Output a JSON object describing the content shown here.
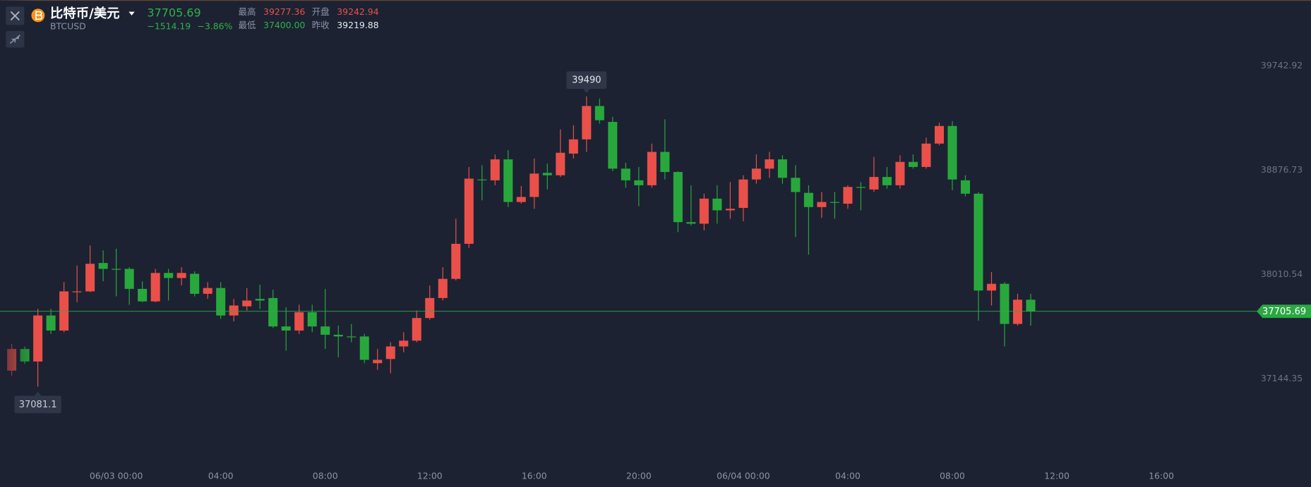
{
  "header": {
    "title": "比特币/美元",
    "symbol": "BTCUSD",
    "price": "37705.69",
    "change": "−1514.19",
    "change_pct": "−3.86%",
    "stats": [
      {
        "label": "最高",
        "value": "39277.36"
      },
      {
        "label": "开盘",
        "value": "39242.94"
      },
      {
        "label": "最低",
        "value": "37400.00"
      },
      {
        "label": "昨收",
        "value": "39219.88"
      }
    ]
  },
  "chart_data": {
    "type": "candlestick",
    "categories": [
      null,
      null,
      null,
      null,
      null,
      null,
      null,
      null,
      "06/03 00:00",
      null,
      null,
      null,
      null,
      null,
      null,
      null,
      "04:00",
      null,
      null,
      null,
      null,
      null,
      null,
      null,
      "08:00",
      null,
      null,
      null,
      null,
      null,
      null,
      null,
      "12:00",
      null,
      null,
      null,
      null,
      null,
      null,
      null,
      "16:00",
      null,
      null,
      null,
      null,
      null,
      null,
      null,
      "20:00",
      null,
      null,
      null,
      null,
      null,
      null,
      null,
      "06/04 00:00",
      null,
      null,
      null,
      null,
      null,
      null,
      null,
      "04:00",
      null,
      null,
      null,
      null,
      null,
      null,
      null,
      "08:00",
      null,
      null,
      null,
      null,
      null,
      null,
      null,
      "12:00",
      null,
      null,
      null,
      null,
      null,
      null,
      null,
      "16:00",
      null,
      null,
      null,
      null,
      null,
      null,
      null
    ],
    "open": [
      37213,
      37393,
      37289,
      37671,
      37546,
      37864,
      37871,
      38107,
      38058,
      38058,
      37892,
      37788,
      38024,
      37982,
      38017,
      37851,
      37899,
      37671,
      37747,
      37809,
      37816,
      37580,
      37546,
      37698,
      37580,
      37511,
      37497,
      37497,
      37275,
      37310,
      37414,
      37462,
      37650,
      37816,
      37975,
      38266,
      38800,
      38793,
      38967,
      38613,
      38655,
      38855,
      38835,
      39015,
      39133,
      39410,
      39278,
      38890,
      38793,
      38752,
      39029,
      38862,
      38446,
      38433,
      38641,
      38544,
      38564,
      38800,
      38890,
      38967,
      38814,
      38689,
      38571,
      38613,
      38599,
      38738,
      38717,
      38821,
      38752,
      38946,
      38904,
      39098,
      39244,
      38793,
      38682,
      37878,
      37934,
      37601,
      37802,
      null,
      null,
      null,
      null,
      null,
      null,
      null,
      null,
      null,
      null,
      null,
      null,
      null,
      null,
      null,
      null,
      null
    ],
    "high": [
      37435,
      37414,
      37726,
      37726,
      37948,
      38086,
      38252,
      38211,
      38225,
      38072,
      37955,
      38058,
      38058,
      38072,
      38038,
      37948,
      37948,
      37809,
      37899,
      37927,
      37885,
      37740,
      37760,
      37760,
      37892,
      37587,
      37601,
      37518,
      37393,
      37449,
      37532,
      37712,
      37920,
      38072,
      38474,
      38904,
      38918,
      39008,
      39043,
      38745,
      38974,
      38932,
      39216,
      39250,
      39490,
      39472,
      39320,
      38939,
      38904,
      39098,
      39299,
      38869,
      38752,
      38682,
      38752,
      38779,
      38835,
      39008,
      39029,
      39001,
      38918,
      38752,
      38696,
      38696,
      38752,
      38779,
      38987,
      38904,
      39001,
      39008,
      39147,
      39271,
      39285,
      38835,
      38696,
      38031,
      37948,
      37851,
      37851,
      null,
      null,
      null,
      null,
      null,
      null,
      null,
      null,
      null,
      null,
      null,
      null,
      null,
      null,
      null,
      null,
      null
    ],
    "low": [
      37172,
      37268,
      37081.1,
      37518,
      37532,
      37781,
      37864,
      37955,
      37830,
      37760,
      37781,
      37781,
      37795,
      37920,
      37830,
      37809,
      37643,
      37622,
      37712,
      37726,
      37567,
      37379,
      37518,
      37532,
      37393,
      37324,
      37449,
      37275,
      37220,
      37192,
      37365,
      37449,
      37636,
      37795,
      37962,
      38232,
      38627,
      38752,
      38571,
      38599,
      38557,
      38717,
      38821,
      38974,
      39029,
      39264,
      38869,
      38731,
      38578,
      38731,
      38800,
      38363,
      38419,
      38377,
      38433,
      38474,
      38453,
      38765,
      38814,
      38765,
      38322,
      38176,
      38481,
      38474,
      38557,
      38544,
      38696,
      38724,
      38724,
      38890,
      38890,
      39085,
      38710,
      38661,
      37629,
      37754,
      37414,
      37587,
      37587,
      null,
      null,
      null,
      null,
      null,
      null,
      null,
      null,
      null,
      null,
      null,
      null,
      null,
      null,
      null,
      null,
      null
    ],
    "close": [
      37393,
      37289,
      37671,
      37546,
      37871,
      37871,
      38100,
      38058,
      38051,
      37892,
      37788,
      38024,
      37982,
      38024,
      37851,
      37899,
      37671,
      37754,
      37795,
      37795,
      37580,
      37546,
      37698,
      37580,
      37511,
      37497,
      37490,
      37303,
      37303,
      37414,
      37462,
      37650,
      37816,
      37975,
      38266,
      38807,
      38793,
      38967,
      38613,
      38655,
      38849,
      38835,
      39022,
      39133,
      39410,
      39292,
      38890,
      38793,
      38752,
      39029,
      38862,
      38446,
      38433,
      38641,
      38544,
      38557,
      38800,
      38890,
      38967,
      38814,
      38696,
      38571,
      38613,
      38606,
      38738,
      38731,
      38821,
      38752,
      38946,
      38904,
      39098,
      39244,
      38800,
      38682,
      37878,
      37934,
      37601,
      37802,
      37705.69,
      null,
      null,
      null,
      null,
      null,
      null,
      null,
      null,
      null,
      null,
      null,
      null,
      null,
      null,
      null,
      null,
      null
    ],
    "up_color": "#ea5049",
    "down_color": "#28a83c",
    "ylim": [
      36410,
      40290
    ],
    "yticks": [
      39742.92,
      38876.73,
      38010.54,
      37144.35
    ],
    "grid": false
  }
}
